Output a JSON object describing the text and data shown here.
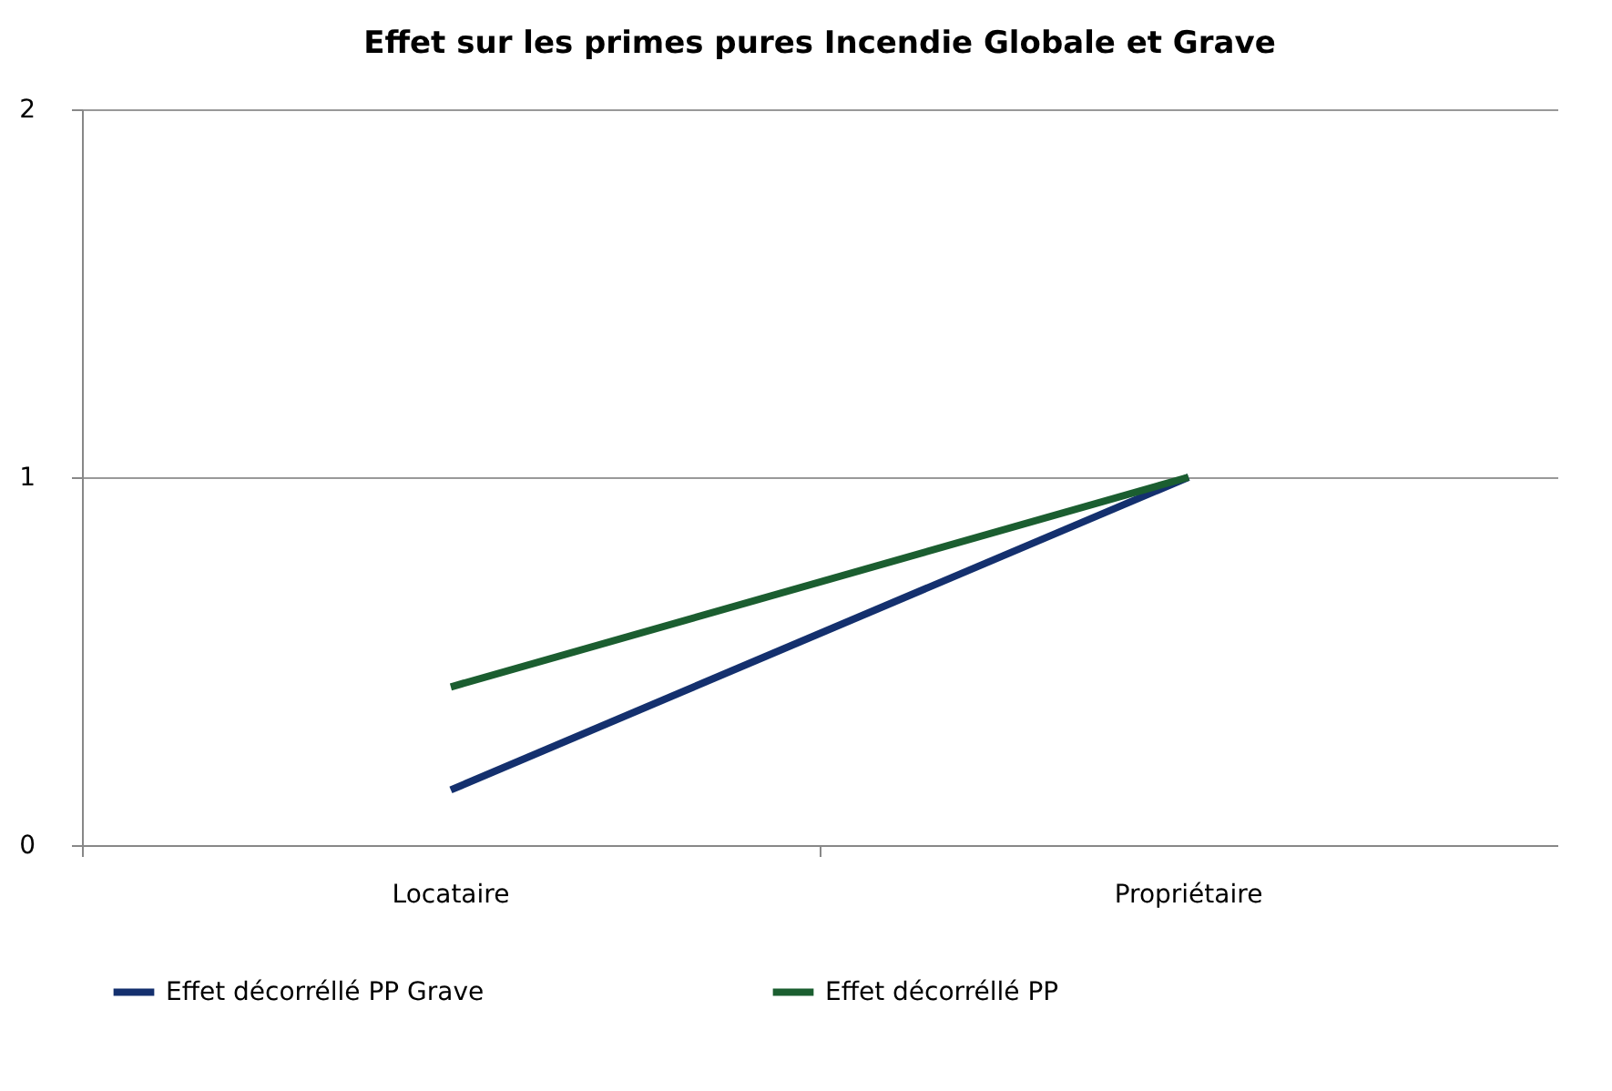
{
  "chart_data": {
    "type": "line",
    "title": "Effet sur les primes pures Incendie Globale et Grave",
    "categories": [
      "Locataire",
      "Propriétaire"
    ],
    "series": [
      {
        "name": "Effet décorréllé PP Grave",
        "color": "#14306e",
        "values": [
          0.15,
          1
        ]
      },
      {
        "name": "Effet décorréllé PP",
        "color": "#1b5e30",
        "values": [
          0.43,
          1
        ]
      }
    ],
    "ylim": [
      0,
      2
    ],
    "yticks": [
      0,
      1,
      2
    ],
    "grid": "y",
    "legend": "bottom",
    "marker": "none",
    "line_style": "solid"
  }
}
